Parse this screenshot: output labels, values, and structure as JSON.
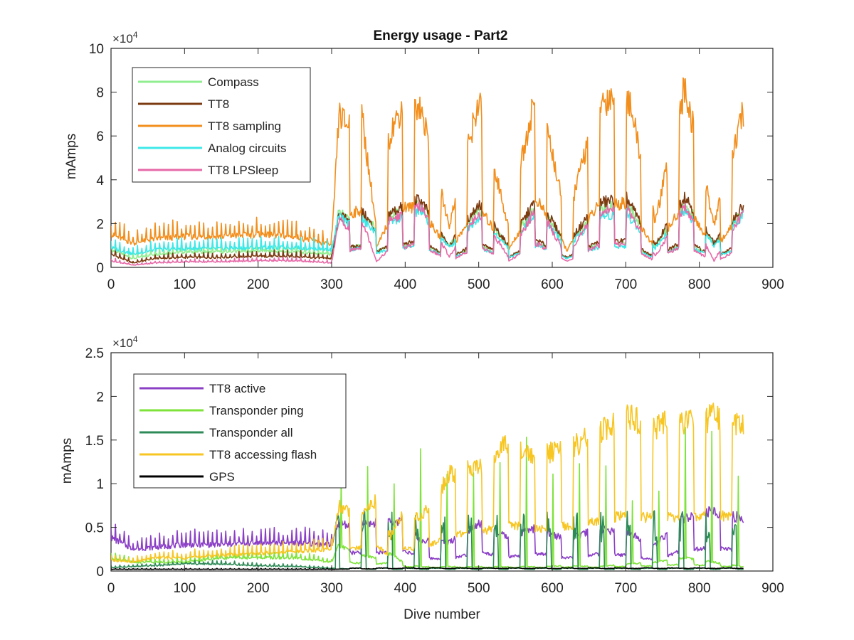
{
  "chart_data": [
    {
      "type": "line",
      "title": "Energy usage - Part2",
      "xlabel": "",
      "ylabel": "mAmps",
      "xlim": [
        0,
        900
      ],
      "ylim": [
        0,
        10
      ],
      "y_multiplier_label": "×10",
      "y_multiplier_exp": "4",
      "xticks": [
        0,
        100,
        200,
        300,
        400,
        500,
        600,
        700,
        800,
        900
      ],
      "yticks": [
        0,
        2,
        4,
        6,
        8,
        10
      ],
      "grid": false,
      "legend": "top-left",
      "notes_periods": [
        37,
        34,
        36,
        38,
        33,
        35,
        36,
        34,
        37,
        35,
        36,
        34,
        37,
        35,
        36,
        34
      ],
      "series": [
        {
          "name": "Compass",
          "color": "#90ee90",
          "x": [
            0,
            30,
            60,
            100,
            150,
            200,
            250,
            300,
            310,
            320,
            340,
            360,
            380,
            400,
            420,
            460,
            500,
            540,
            580,
            620,
            660,
            700,
            740,
            780,
            820,
            860
          ],
          "y": [
            0.8,
            0.4,
            0.6,
            0.7,
            0.7,
            0.75,
            0.7,
            0.6,
            2.6,
            2.2,
            2.5,
            1.8,
            2.4,
            2.6,
            2.9,
            1.0,
            2.6,
            1.0,
            2.9,
            1.0,
            2.6,
            2.9,
            1.0,
            2.9,
            1.1,
            2.6
          ]
        },
        {
          "name": "TT8",
          "color": "#7b3a10",
          "x": [
            0,
            30,
            60,
            100,
            150,
            200,
            250,
            300,
            310,
            320,
            340,
            360,
            380,
            400,
            420,
            460,
            500,
            540,
            580,
            620,
            660,
            700,
            740,
            780,
            820,
            860
          ],
          "y": [
            0.6,
            0.2,
            0.4,
            0.45,
            0.45,
            0.5,
            0.5,
            0.4,
            2.4,
            2.2,
            2.6,
            1.7,
            2.5,
            2.8,
            3.1,
            1.0,
            2.9,
            1.0,
            3.2,
            1.0,
            2.9,
            3.2,
            1.0,
            3.3,
            1.1,
            2.8
          ]
        },
        {
          "name": "TT8 sampling",
          "color": "#f28e1c",
          "x": [
            0,
            30,
            60,
            100,
            150,
            200,
            250,
            300,
            310,
            320,
            340,
            360,
            380,
            400,
            420,
            460,
            500,
            540,
            580,
            620,
            660,
            700,
            740,
            780,
            820,
            860
          ],
          "y": [
            1.5,
            1.1,
            1.3,
            1.4,
            1.4,
            1.5,
            1.4,
            1.0,
            7.0,
            6.5,
            7.2,
            2.0,
            6.2,
            7.6,
            7.4,
            1.9,
            7.6,
            1.9,
            8.4,
            2.0,
            7.4,
            8.2,
            2.1,
            8.2,
            2.0,
            7.1
          ]
        },
        {
          "name": "Analog circuits",
          "color": "#3ee8e8",
          "x": [
            0,
            30,
            60,
            100,
            150,
            200,
            250,
            300,
            310,
            320,
            340,
            360,
            380,
            400,
            420,
            460,
            500,
            540,
            580,
            620,
            660,
            700,
            740,
            780,
            820,
            860
          ],
          "y": [
            0.9,
            0.6,
            0.8,
            0.85,
            0.85,
            0.9,
            0.9,
            0.8,
            2.4,
            2.0,
            2.2,
            1.6,
            2.1,
            2.3,
            2.6,
            0.9,
            2.3,
            0.9,
            2.6,
            0.9,
            2.3,
            2.5,
            0.9,
            2.6,
            1.0,
            2.4
          ]
        },
        {
          "name": "TT8 LPSleep",
          "color": "#e66aa8",
          "x": [
            0,
            30,
            60,
            100,
            150,
            200,
            250,
            300,
            310,
            320,
            340,
            360,
            380,
            400,
            420,
            460,
            500,
            540,
            580,
            620,
            660,
            700,
            740,
            780,
            820,
            860
          ],
          "y": [
            0.3,
            0.1,
            0.2,
            0.25,
            0.25,
            0.3,
            0.3,
            0.2,
            2.2,
            1.8,
            2.3,
            0.4,
            2.2,
            2.4,
            2.8,
            0.5,
            2.5,
            0.5,
            2.8,
            0.5,
            2.5,
            2.8,
            0.5,
            2.8,
            0.3,
            2.5
          ]
        }
      ]
    },
    {
      "type": "line",
      "title": "",
      "xlabel": "Dive number",
      "ylabel": "mAmps",
      "xlim": [
        0,
        900
      ],
      "ylim": [
        0,
        2.5
      ],
      "y_multiplier_label": "×10",
      "y_multiplier_exp": "4",
      "xticks": [
        0,
        100,
        200,
        300,
        400,
        500,
        600,
        700,
        800,
        900
      ],
      "yticks": [
        0,
        0.5,
        1,
        1.5,
        2,
        2.5
      ],
      "grid": false,
      "legend": "top-left",
      "series": [
        {
          "name": "TT8 active",
          "color": "#8b3fc6",
          "x": [
            0,
            30,
            60,
            100,
            150,
            200,
            250,
            300,
            310,
            330,
            360,
            380,
            400,
            420,
            460,
            500,
            540,
            580,
            620,
            660,
            700,
            740,
            780,
            820,
            860
          ],
          "y": [
            0.38,
            0.25,
            0.27,
            0.3,
            0.3,
            0.32,
            0.32,
            0.3,
            0.55,
            0.52,
            0.55,
            0.55,
            0.6,
            0.35,
            0.33,
            0.55,
            0.38,
            0.5,
            0.35,
            0.48,
            0.45,
            0.3,
            0.62,
            0.68,
            0.6
          ]
        },
        {
          "name": "Transponder ping",
          "color": "#7ee33a",
          "x": [
            0,
            30,
            60,
            100,
            150,
            200,
            250,
            300,
            310,
            330,
            360,
            380,
            400,
            420,
            460,
            500,
            540,
            580,
            620,
            660,
            700,
            740,
            780,
            820,
            860
          ],
          "y": [
            0.15,
            0.1,
            0.1,
            0.1,
            0.15,
            0.15,
            0.15,
            0.1,
            0.3,
            0.2,
            0.15,
            0.2,
            0.08,
            0.05,
            0.05,
            0.05,
            0.05,
            0.05,
            0.06,
            0.05,
            0.08,
            0.1,
            0.15,
            0.1,
            0.05
          ]
        },
        {
          "name": "Transponder all",
          "color": "#2e8b57",
          "x": [
            0,
            30,
            60,
            100,
            150,
            200,
            250,
            300,
            310,
            330,
            360,
            380,
            400,
            420,
            460,
            500,
            540,
            580,
            620,
            660,
            700,
            740,
            780,
            820,
            860
          ],
          "y": [
            0.04,
            0.05,
            0.06,
            0.08,
            0.08,
            0.06,
            0.05,
            0.03,
            0.03,
            0.02,
            0.02,
            0.02,
            0.02,
            0.02,
            0.02,
            0.02,
            0.02,
            0.02,
            0.02,
            0.02,
            0.02,
            0.02,
            0.02,
            0.02,
            0.02
          ]
        },
        {
          "name": "TT8 accessing flash",
          "color": "#f7c623",
          "x": [
            0,
            30,
            60,
            100,
            150,
            200,
            250,
            300,
            310,
            330,
            360,
            380,
            400,
            420,
            460,
            500,
            540,
            580,
            620,
            660,
            700,
            740,
            780,
            820,
            860
          ],
          "y": [
            0.12,
            0.1,
            0.15,
            0.15,
            0.18,
            0.2,
            0.22,
            0.25,
            0.75,
            0.65,
            0.8,
            0.4,
            0.7,
            0.6,
            1.1,
            1.2,
            1.45,
            1.3,
            1.4,
            1.55,
            1.75,
            1.65,
            1.7,
            1.75,
            1.65
          ]
        },
        {
          "name": "GPS",
          "color": "#000000",
          "x": [
            0,
            100,
            200,
            300,
            400,
            500,
            600,
            700,
            800,
            860
          ],
          "y": [
            0.02,
            0.02,
            0.02,
            0.02,
            0.03,
            0.03,
            0.03,
            0.03,
            0.03,
            0.03
          ]
        }
      ]
    }
  ]
}
